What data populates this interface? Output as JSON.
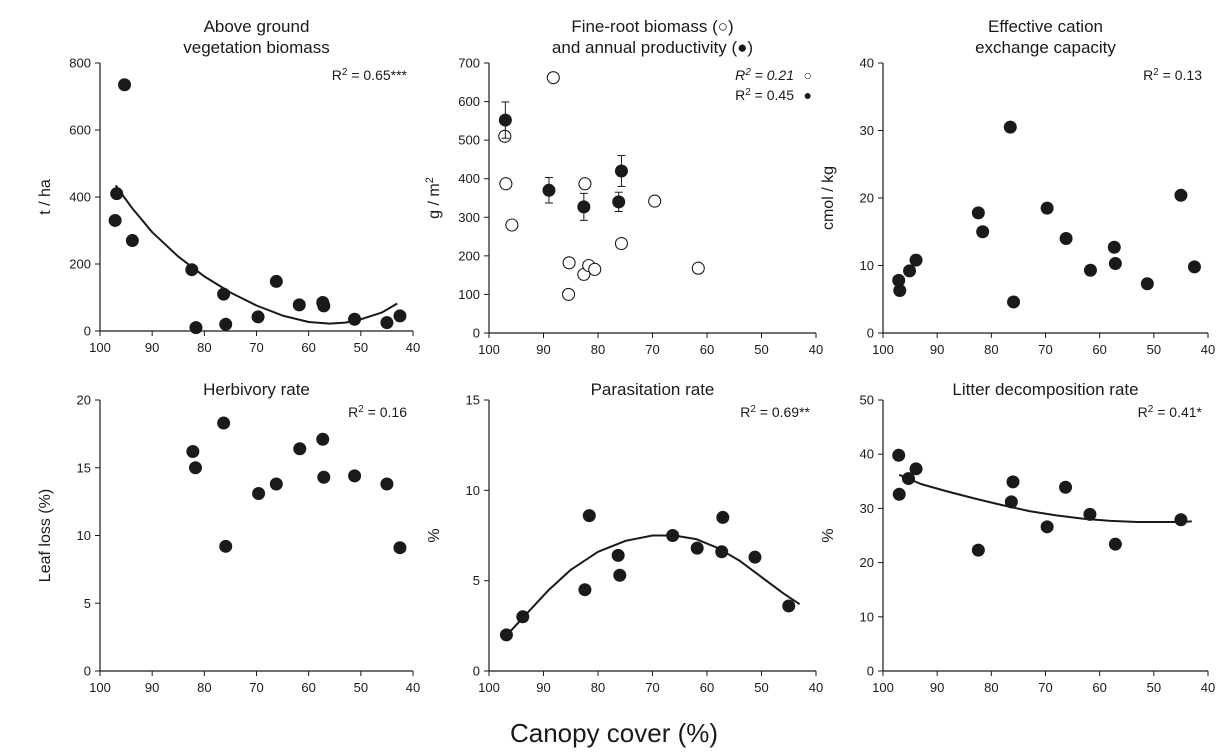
{
  "figure": {
    "xlabel": "Canopy cover  (%)"
  },
  "chart_data": [
    {
      "type": "scatter",
      "title_lines": [
        "Above ground",
        "vegetation biomass"
      ],
      "ylabel": "t / ha",
      "xlabel": "",
      "xlim": [
        100,
        40
      ],
      "ylim": [
        0,
        800
      ],
      "xticks": [
        100,
        90,
        80,
        70,
        60,
        50,
        40
      ],
      "yticks": [
        0,
        200,
        400,
        600,
        800
      ],
      "annotations": [
        {
          "pre": "R",
          "sup": "2",
          "post": " = 0.65***",
          "italic": false,
          "symbol": ""
        }
      ],
      "series": [
        {
          "marker": "filled",
          "x": [
            96.8,
            95.3,
            97.1,
            93.8,
            82.4,
            81.6,
            76.3,
            75.9,
            69.7,
            66.2,
            61.8,
            57.3,
            57.1,
            51.2,
            45.0,
            42.5
          ],
          "y": [
            410,
            735,
            330,
            270,
            183,
            10,
            110,
            20,
            42,
            148,
            78,
            85,
            75,
            35,
            25,
            45
          ]
        }
      ],
      "fit": [
        [
          97,
          435
        ],
        [
          94,
          370
        ],
        [
          90,
          295
        ],
        [
          85,
          222
        ],
        [
          80,
          163
        ],
        [
          75,
          115
        ],
        [
          70,
          76
        ],
        [
          65,
          46
        ],
        [
          60,
          27
        ],
        [
          56,
          22
        ],
        [
          53,
          25
        ],
        [
          50,
          35
        ],
        [
          46,
          55
        ],
        [
          43,
          82
        ]
      ]
    },
    {
      "type": "scatter",
      "title_lines": [
        "Fine-root biomass (○)",
        "and annual productivity (●)"
      ],
      "ylabel": "g / m",
      "ylabel_sup": "2",
      "xlabel": "",
      "xlim": [
        100,
        40
      ],
      "ylim": [
        0,
        700
      ],
      "xticks": [
        100,
        90,
        80,
        70,
        60,
        50,
        40
      ],
      "yticks": [
        0,
        100,
        200,
        300,
        400,
        500,
        600,
        700
      ],
      "annotations": [
        {
          "pre": "R",
          "sup": "2",
          "post": " = 0.21",
          "italic": true,
          "symbol": "○"
        },
        {
          "pre": "R",
          "sup": "2",
          "post": " = 0.45",
          "italic": false,
          "symbol": "●"
        }
      ],
      "series": [
        {
          "marker": "open",
          "x": [
            97.1,
            96.9,
            95.8,
            88.2,
            85.3,
            85.4,
            82.4,
            82.6,
            81.7,
            80.6,
            75.7,
            69.6,
            61.6
          ],
          "y": [
            510,
            387,
            280,
            662,
            182,
            100,
            387,
            152,
            175,
            165,
            232,
            342,
            168
          ]
        },
        {
          "marker": "filled",
          "x": [
            97.0,
            89.0,
            82.6,
            76.2,
            75.7
          ],
          "y": [
            552,
            370,
            327,
            340,
            420
          ],
          "err": [
            47,
            33,
            35,
            25,
            40
          ]
        }
      ]
    },
    {
      "type": "scatter",
      "title_lines": [
        "Effective cation",
        "exchange capacity"
      ],
      "ylabel": "cmol / kg",
      "xlabel": "",
      "xlim": [
        100,
        40
      ],
      "ylim": [
        0,
        40
      ],
      "xticks": [
        100,
        90,
        80,
        70,
        60,
        50,
        40
      ],
      "yticks": [
        0,
        10,
        20,
        30,
        40
      ],
      "annotations": [
        {
          "pre": "R",
          "sup": "2",
          "post": " = 0.13",
          "italic": false,
          "symbol": ""
        }
      ],
      "series": [
        {
          "marker": "filled",
          "x": [
            97.1,
            96.9,
            95.1,
            93.9,
            82.4,
            81.6,
            76.5,
            75.9,
            69.7,
            66.2,
            61.7,
            57.3,
            57.1,
            51.2,
            45.0,
            42.5
          ],
          "y": [
            7.8,
            6.3,
            9.2,
            10.8,
            17.8,
            15.0,
            30.5,
            4.6,
            18.5,
            14.0,
            9.3,
            12.7,
            10.3,
            7.3,
            20.4,
            9.8
          ]
        }
      ]
    },
    {
      "type": "scatter",
      "title_lines": [
        "Herbivory rate"
      ],
      "ylabel": "Leaf loss (%)",
      "xlabel": "",
      "xlim": [
        100,
        40
      ],
      "ylim": [
        0,
        20
      ],
      "xticks": [
        100,
        90,
        80,
        70,
        60,
        50,
        40
      ],
      "yticks": [
        0,
        5,
        10,
        15,
        20
      ],
      "annotations": [
        {
          "pre": "R",
          "sup": "2",
          "post": " = 0.16",
          "italic": false,
          "symbol": ""
        }
      ],
      "series": [
        {
          "marker": "filled",
          "x": [
            82.2,
            81.7,
            76.3,
            75.9,
            69.6,
            66.2,
            61.7,
            57.3,
            57.1,
            51.2,
            45.0,
            42.5
          ],
          "y": [
            16.2,
            15.0,
            18.3,
            9.2,
            13.1,
            13.8,
            16.4,
            17.1,
            14.3,
            14.4,
            13.8,
            9.1
          ]
        }
      ]
    },
    {
      "type": "scatter",
      "title_lines": [
        "Parasitation rate"
      ],
      "ylabel": "%",
      "xlabel": "",
      "xlim": [
        100,
        40
      ],
      "ylim": [
        0,
        15
      ],
      "xticks": [
        100,
        90,
        80,
        70,
        60,
        50,
        40
      ],
      "yticks": [
        0,
        5,
        10,
        15
      ],
      "annotations": [
        {
          "pre": "R",
          "sup": "2",
          "post": " = 0.69**",
          "italic": false,
          "symbol": ""
        }
      ],
      "series": [
        {
          "marker": "filled",
          "x": [
            96.8,
            93.8,
            82.4,
            81.6,
            76.3,
            76.0,
            66.3,
            61.8,
            57.3,
            57.1,
            51.2,
            45.0
          ],
          "y": [
            2.0,
            3.0,
            4.5,
            8.6,
            6.4,
            5.3,
            7.5,
            6.8,
            6.6,
            8.5,
            6.3,
            3.6
          ]
        }
      ],
      "fit": [
        [
          97,
          1.9
        ],
        [
          93,
          3.2
        ],
        [
          89,
          4.5
        ],
        [
          85,
          5.6
        ],
        [
          80,
          6.6
        ],
        [
          75,
          7.2
        ],
        [
          70,
          7.5
        ],
        [
          66,
          7.5
        ],
        [
          62,
          7.3
        ],
        [
          58,
          6.8
        ],
        [
          54,
          6.1
        ],
        [
          50,
          5.2
        ],
        [
          46,
          4.3
        ],
        [
          43,
          3.7
        ]
      ]
    },
    {
      "type": "scatter",
      "title_lines": [
        "Litter decomposition rate"
      ],
      "ylabel": "%",
      "xlabel": "",
      "xlim": [
        100,
        40
      ],
      "ylim": [
        0,
        50
      ],
      "xticks": [
        100,
        90,
        80,
        70,
        60,
        50,
        40
      ],
      "yticks": [
        0,
        10,
        20,
        30,
        40,
        50
      ],
      "annotations": [
        {
          "pre": "R",
          "sup": "2",
          "post": " = 0.41*",
          "italic": false,
          "symbol": ""
        }
      ],
      "series": [
        {
          "marker": "filled",
          "x": [
            97.0,
            97.1,
            95.3,
            93.9,
            82.4,
            76.3,
            76.0,
            69.7,
            66.3,
            61.8,
            57.1,
            45.0
          ],
          "y": [
            32.6,
            39.8,
            35.5,
            37.3,
            22.3,
            31.2,
            34.9,
            26.6,
            33.9,
            28.9,
            23.4,
            27.9
          ]
        }
      ],
      "fit": [
        [
          97,
          36.2
        ],
        [
          93,
          34.5
        ],
        [
          88,
          33.1
        ],
        [
          83,
          31.8
        ],
        [
          78,
          30.6
        ],
        [
          73,
          29.5
        ],
        [
          68,
          28.7
        ],
        [
          63,
          28.1
        ],
        [
          58,
          27.7
        ],
        [
          53,
          27.5
        ],
        [
          48,
          27.5
        ],
        [
          45,
          27.5
        ],
        [
          43,
          27.6
        ]
      ]
    }
  ]
}
